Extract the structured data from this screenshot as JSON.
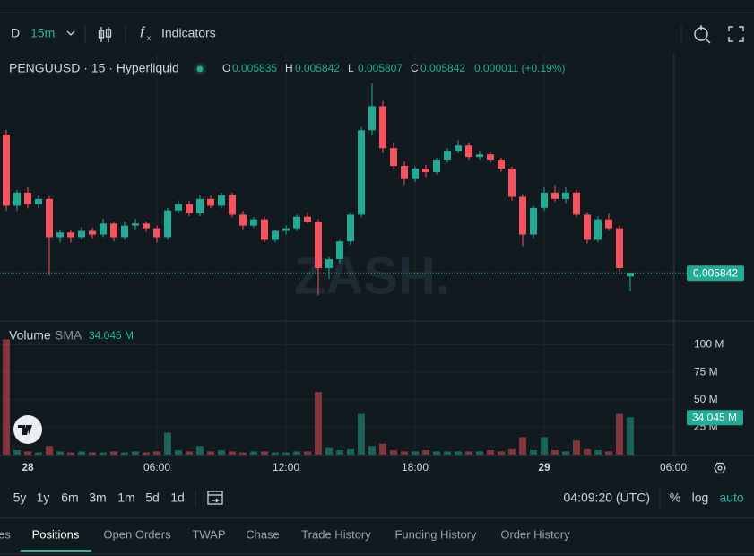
{
  "toolbar": {
    "interval_prefix": "D",
    "interval": "15m",
    "indicators": "Indicators"
  },
  "legend": {
    "symbol": "PENGUUSD · 15 · Hyperliquid",
    "o": "O",
    "h": "H",
    "l": "L",
    "c": "C",
    "change": "0.000011 (+0.19%)"
  },
  "watermark": "ZASH.",
  "chart_data": [
    {
      "type": "candlestick",
      "up_color": "#22ab94",
      "down_color": "#f7525f",
      "ylim": [
        0.00575,
        0.00626
      ],
      "candles": [
        [
          0.006106,
          0.006115,
          0.00596,
          0.00597
        ],
        [
          0.00597,
          0.006,
          0.00596,
          0.005995
        ],
        [
          0.005995,
          0.006005,
          0.005965,
          0.005973
        ],
        [
          0.005973,
          0.00599,
          0.005965,
          0.005983
        ],
        [
          0.005983,
          0.005988,
          0.005837,
          0.00591
        ],
        [
          0.00591,
          0.005925,
          0.0059,
          0.005919
        ],
        [
          0.005919,
          0.005925,
          0.0059,
          0.00591
        ],
        [
          0.00591,
          0.00593,
          0.005905,
          0.005922
        ],
        [
          0.005922,
          0.005928,
          0.005908,
          0.005915
        ],
        [
          0.005915,
          0.005945,
          0.00591,
          0.005936
        ],
        [
          0.005936,
          0.00594,
          0.005902,
          0.00591
        ],
        [
          0.00591,
          0.00594,
          0.005905,
          0.005932
        ],
        [
          0.005932,
          0.005945,
          0.005925,
          0.005936
        ],
        [
          0.005936,
          0.00594,
          0.00592,
          0.005927
        ],
        [
          0.005927,
          0.005932,
          0.0059,
          0.00591
        ],
        [
          0.00591,
          0.005966,
          0.005905,
          0.005961
        ],
        [
          0.005961,
          0.00598,
          0.005955,
          0.005973
        ],
        [
          0.005973,
          0.00598,
          0.00595,
          0.005956
        ],
        [
          0.005956,
          0.00599,
          0.00595,
          0.005983
        ],
        [
          0.005983,
          0.00599,
          0.005965,
          0.00597
        ],
        [
          0.00597,
          0.005995,
          0.005965,
          0.00599
        ],
        [
          0.00599,
          0.005995,
          0.005948,
          0.005953
        ],
        [
          0.005953,
          0.00596,
          0.005925,
          0.005932
        ],
        [
          0.005932,
          0.005948,
          0.005928,
          0.005944
        ],
        [
          0.005944,
          0.00595,
          0.0059,
          0.005905
        ],
        [
          0.005905,
          0.005925,
          0.0059,
          0.005922
        ],
        [
          0.005922,
          0.005932,
          0.005915,
          0.005927
        ],
        [
          0.005927,
          0.005953,
          0.005922,
          0.005949
        ],
        [
          0.005949,
          0.005958,
          0.005935,
          0.005939
        ],
        [
          0.005939,
          0.005944,
          0.005799,
          0.005851
        ],
        [
          0.005851,
          0.005872,
          0.00583,
          0.005868
        ],
        [
          0.005868,
          0.005905,
          0.00586,
          0.005902
        ],
        [
          0.005902,
          0.005958,
          0.005895,
          0.005953
        ],
        [
          0.005953,
          0.00612,
          0.005948,
          0.006114
        ],
        [
          0.006114,
          0.006204,
          0.006105,
          0.00616
        ],
        [
          0.00616,
          0.00617,
          0.00607,
          0.00608
        ],
        [
          0.00608,
          0.00609,
          0.00604,
          0.006046
        ],
        [
          0.006046,
          0.006055,
          0.00601,
          0.006021
        ],
        [
          0.006021,
          0.006045,
          0.006015,
          0.006041
        ],
        [
          0.006041,
          0.006048,
          0.006025,
          0.006034
        ],
        [
          0.006034,
          0.006062,
          0.00603,
          0.006058
        ],
        [
          0.006058,
          0.00608,
          0.006052,
          0.006075
        ],
        [
          0.006075,
          0.006095,
          0.00607,
          0.006085
        ],
        [
          0.006085,
          0.00609,
          0.006058,
          0.006063
        ],
        [
          0.006063,
          0.006075,
          0.006058,
          0.006068
        ],
        [
          0.006068,
          0.006072,
          0.006052,
          0.006058
        ],
        [
          0.006058,
          0.006062,
          0.006035,
          0.006041
        ],
        [
          0.006041,
          0.006045,
          0.00598,
          0.005987
        ],
        [
          0.005987,
          0.005992,
          0.005893,
          0.005915
        ],
        [
          0.005915,
          0.00597,
          0.005908,
          0.005966
        ],
        [
          0.005966,
          0.006005,
          0.00596,
          0.005995
        ],
        [
          0.005995,
          0.00601,
          0.005978,
          0.005983
        ],
        [
          0.005983,
          0.006005,
          0.005975,
          0.005995
        ],
        [
          0.005995,
          0.006,
          0.005948,
          0.005953
        ],
        [
          0.005953,
          0.005958,
          0.005898,
          0.005905
        ],
        [
          0.005905,
          0.00595,
          0.0059,
          0.005944
        ],
        [
          0.005944,
          0.005955,
          0.005922,
          0.005927
        ],
        [
          0.005927,
          0.005932,
          0.005845,
          0.005851
        ],
        [
          0.005835,
          0.005842,
          0.005807,
          0.005842
        ]
      ]
    },
    {
      "type": "bar",
      "title": "Volume",
      "sma_name": "SMA",
      "sma": {
        "value": 34.045,
        "label": "34.045 M"
      },
      "ylim": [
        0,
        120
      ],
      "yticks": [
        {
          "value": 25,
          "label": "25 M"
        },
        {
          "value": 50,
          "label": "50 M"
        },
        {
          "value": 75,
          "label": "75 M"
        },
        {
          "value": 100,
          "label": "100 M"
        }
      ],
      "values": [
        105,
        4,
        3,
        2,
        8,
        3,
        2,
        3,
        2,
        2,
        3,
        2,
        3,
        2,
        3,
        20,
        4,
        3,
        8,
        3,
        4,
        3,
        2,
        3,
        3,
        2,
        2,
        3,
        3,
        57,
        6,
        4,
        5,
        37,
        8,
        10,
        4,
        3,
        3,
        4,
        3,
        3,
        3,
        3,
        3,
        4,
        3,
        5,
        16,
        4,
        16,
        4,
        3,
        13,
        5,
        4,
        3,
        37,
        34
      ]
    }
  ],
  "time_axis": [
    "28",
    "06:00",
    "12:00",
    "18:00",
    "29",
    "06:00"
  ],
  "range_buttons": [
    "5y",
    "1y",
    "6m",
    "3m",
    "1m",
    "5d",
    "1d"
  ],
  "clock": "04:09:20 (UTC)",
  "scale_buttons": [
    "%",
    "log",
    "auto"
  ],
  "tabs": [
    "es",
    "Positions",
    "Open Orders",
    "TWAP",
    "Chase",
    "Trade History",
    "Funding History",
    "Order History"
  ],
  "active_tab": 1
}
